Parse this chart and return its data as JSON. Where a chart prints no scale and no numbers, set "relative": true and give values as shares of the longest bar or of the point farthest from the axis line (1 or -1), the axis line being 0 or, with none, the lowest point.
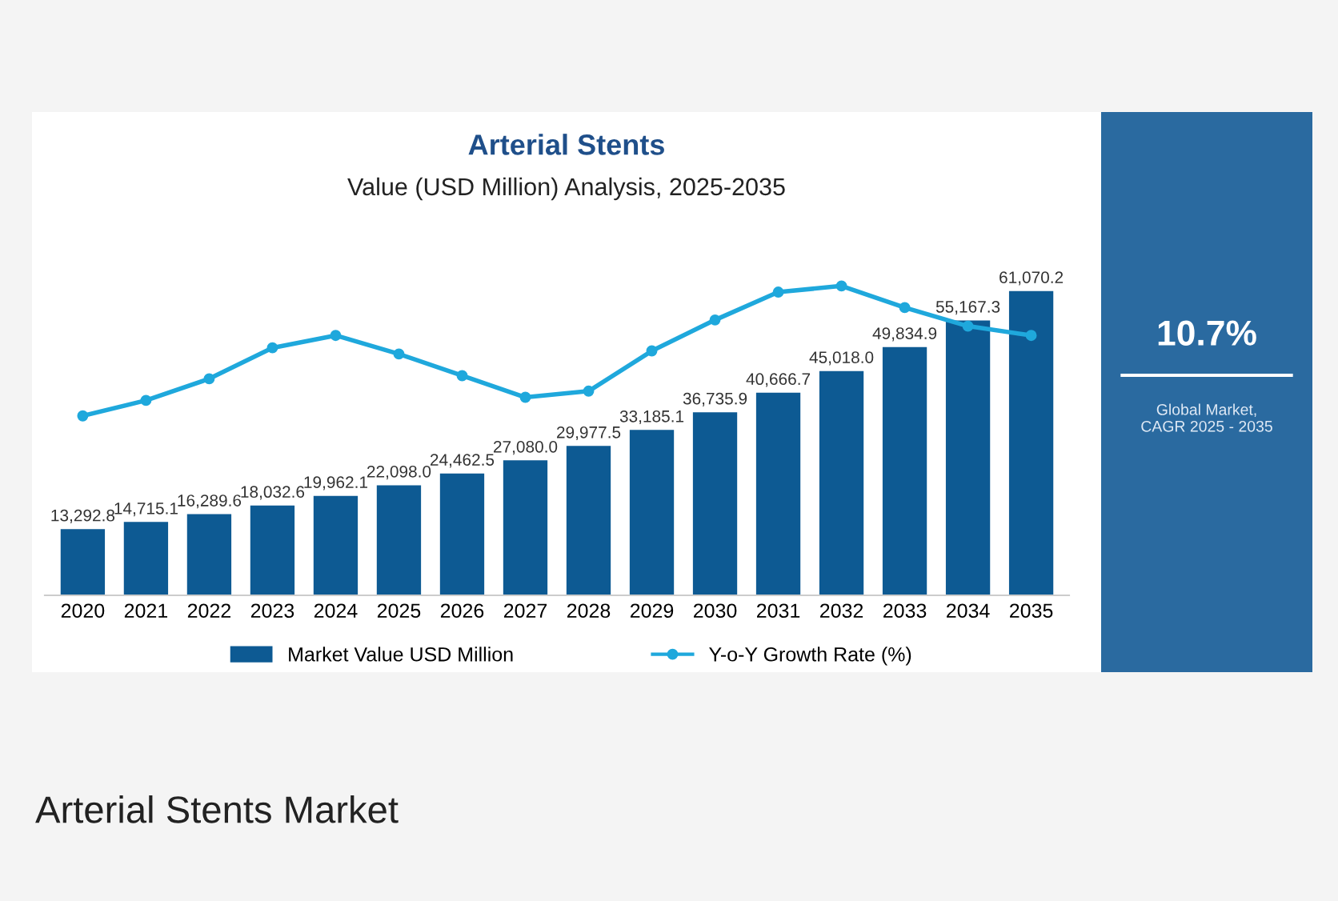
{
  "chart_data": [
    {
      "type": "bar",
      "title": "Arterial Stents",
      "subtitle": "Value (USD Million) Analysis, 2025-2035",
      "categories": [
        "2020",
        "2021",
        "2022",
        "2023",
        "2024",
        "2025",
        "2026",
        "2027",
        "2028",
        "2029",
        "2030",
        "2031",
        "2032",
        "2033",
        "2034",
        "2035"
      ],
      "series": [
        {
          "name": "Market Value USD Million",
          "color": "#0d5a93",
          "values": [
            13292.8,
            14715.1,
            16289.6,
            18032.6,
            19962.1,
            22098.0,
            24462.5,
            27080.0,
            29977.5,
            33185.1,
            36735.9,
            40666.7,
            45018.0,
            49834.9,
            55167.3,
            61070.2
          ],
          "value_labels": [
            "13,292.8",
            "14,715.1",
            "16,289.6",
            "18,032.6",
            "19,962.1",
            "22,098.0",
            "24,462.5",
            "27,080.0",
            "29,977.5",
            "33,185.1",
            "36,735.9",
            "40,666.7",
            "45,018.0",
            "49,834.9",
            "55,167.3",
            "61,070.2"
          ]
        }
      ],
      "legend": "bottom",
      "annotations": [
        "10.7%",
        "Global Market,\nCAGR 2025 - 2035",
        "Arterial Stents Market"
      ]
    },
    {
      "type": "line",
      "relative": true,
      "categories": [
        "2020",
        "2021",
        "2022",
        "2023",
        "2024",
        "2025",
        "2026",
        "2027",
        "2028",
        "2029",
        "2030",
        "2031",
        "2032",
        "2033",
        "2034",
        "2035"
      ],
      "series": [
        {
          "name": "Y-o-Y Growth Rate (%)",
          "color": "#1fa8dc",
          "values": [
            0.58,
            0.63,
            0.7,
            0.8,
            0.84,
            0.78,
            0.71,
            0.64,
            0.66,
            0.79,
            0.89,
            0.98,
            1,
            0.93,
            0.87,
            0.84
          ]
        }
      ],
      "marker": "circle",
      "line_style": "solid",
      "legend": "bottom",
      "tick_labels": false
    }
  ]
}
